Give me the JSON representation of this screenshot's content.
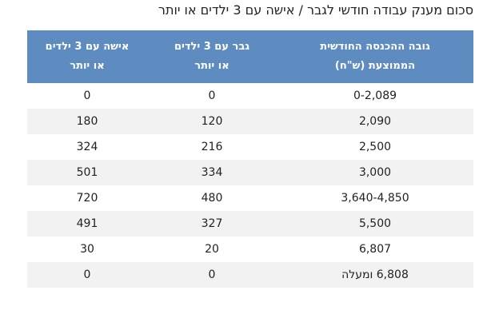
{
  "caption": "סכום מענק עבודה חודשי לגבר / אישה עם 3 ילדים או יותר",
  "table": {
    "headers": [
      {
        "line1": "גובה ההכנסה החודשית",
        "line2": "הממוצעת (ש\"ח)"
      },
      {
        "line1": "גבר עם 3 ילדים",
        "line2": "או יותר"
      },
      {
        "line1": "אישה עם 3 ילדים",
        "line2": "או יותר"
      }
    ],
    "rows": [
      {
        "income": "0-2,089",
        "man": "0",
        "woman": "0"
      },
      {
        "income": "2,090",
        "man": "120",
        "woman": "180"
      },
      {
        "income": "2,500",
        "man": "216",
        "woman": "324"
      },
      {
        "income": "3,000",
        "man": "334",
        "woman": "501"
      },
      {
        "income": "3,640-4,850",
        "man": "480",
        "woman": "720"
      },
      {
        "income": "5,500",
        "man": "327",
        "woman": "491"
      },
      {
        "income": "6,807",
        "man": "20",
        "woman": "30"
      },
      {
        "income": "6,808 ומעלה",
        "man": "0",
        "woman": "0"
      }
    ]
  }
}
